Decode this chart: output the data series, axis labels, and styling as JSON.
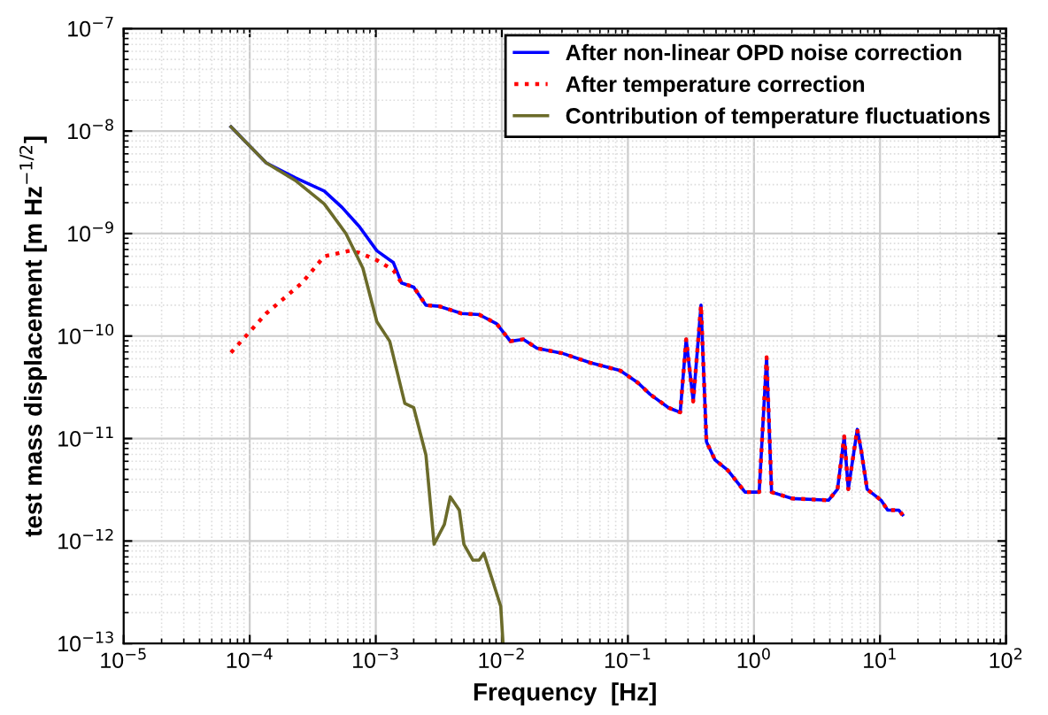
{
  "chart_data": {
    "type": "line",
    "log": "xy",
    "xlabel": "Frequency  [Hz]",
    "ylabel": "test mass displacement [m Hz$^{−1/2}$]",
    "xlim": [
      1e-05,
      100
    ],
    "ylim": [
      1e-13,
      1e-07
    ],
    "xticks": [
      {
        "value": 1e-05,
        "label": "10$^{−5}$"
      },
      {
        "value": 0.0001,
        "label": "10$^{−4}$"
      },
      {
        "value": 0.001,
        "label": "10$^{−3}$"
      },
      {
        "value": 0.01,
        "label": "10$^{−2}$"
      },
      {
        "value": 0.1,
        "label": "10$^{−1}$"
      },
      {
        "value": 1,
        "label": "10$^{0}$"
      },
      {
        "value": 10,
        "label": "10$^{1}$"
      },
      {
        "value": 100,
        "label": "10$^{2}$"
      }
    ],
    "yticks": [
      {
        "value": 1e-13,
        "label": "10$^{−13}$"
      },
      {
        "value": 1e-12,
        "label": "10$^{−12}$"
      },
      {
        "value": 1e-11,
        "label": "10$^{−11}$"
      },
      {
        "value": 1e-10,
        "label": "10$^{−10}$"
      },
      {
        "value": 1e-09,
        "label": "10$^{−9}$"
      },
      {
        "value": 1e-08,
        "label": "10$^{−8}$"
      },
      {
        "value": 1e-07,
        "label": "10$^{−7}$"
      }
    ],
    "grid": true,
    "legend": "top right",
    "marker": "none",
    "series": [
      {
        "name": "After non-linear OPD noise correction",
        "color": "#0000ff",
        "line_style": "solid",
        "x": [
          7.1e-05,
          0.000135,
          0.00023,
          0.00039,
          0.00054,
          0.00074,
          0.00102,
          0.00138,
          0.0016,
          0.002,
          0.0025,
          0.0032,
          0.0048,
          0.0066,
          0.0091,
          0.0117,
          0.0148,
          0.019,
          0.03,
          0.05,
          0.087,
          0.12,
          0.15,
          0.21,
          0.26,
          0.29,
          0.33,
          0.38,
          0.42,
          0.49,
          0.62,
          0.85,
          1.1,
          1.26,
          1.38,
          2.0,
          3.9,
          4.6,
          5.2,
          5.6,
          6.6,
          7.1,
          7.9,
          10.2,
          11.5,
          14.1,
          15.1
        ],
        "values": [
          1.1e-08,
          4.9e-09,
          3.5e-09,
          2.6e-09,
          1.8e-09,
          1.17e-09,
          6.8e-10,
          5.2e-10,
          3.3e-10,
          3e-10,
          2e-10,
          1.95e-10,
          1.66e-10,
          1.62e-10,
          1.32e-10,
          8.9e-11,
          9.3e-11,
          7.6e-11,
          6.8e-11,
          5.5e-11,
          4.6e-11,
          3.5e-11,
          2.7e-11,
          2e-11,
          1.8e-11,
          9.3e-11,
          2.3e-11,
          2e-10,
          9.3e-12,
          6.2e-12,
          4.9e-12,
          3e-12,
          3e-12,
          6.2e-11,
          3e-12,
          2.6e-12,
          2.5e-12,
          3.2e-12,
          1.05e-11,
          3.2e-12,
          1.23e-11,
          7.6e-12,
          3.2e-12,
          2.5e-12,
          2e-12,
          2e-12,
          1.8e-12
        ]
      },
      {
        "name": "After temperature correction",
        "color": "#ff0000",
        "line_style": "dotted",
        "x": [
          7.1e-05,
          0.000135,
          0.00026,
          0.00039,
          0.00062,
          0.00074,
          0.00102,
          0.00138,
          0.0016,
          0.002,
          0.0025,
          0.0032,
          0.0048,
          0.0066,
          0.0091,
          0.0117,
          0.0148,
          0.019,
          0.03,
          0.05,
          0.087,
          0.12,
          0.15,
          0.21,
          0.26,
          0.29,
          0.33,
          0.38,
          0.42,
          0.49,
          0.62,
          0.85,
          1.1,
          1.26,
          1.38,
          2.0,
          3.9,
          4.6,
          5.2,
          5.6,
          6.6,
          7.1,
          7.9,
          10.2,
          11.5,
          14.1,
          15.1
        ],
        "values": [
          6.9e-11,
          1.66e-10,
          3.3e-10,
          6e-10,
          6.8e-10,
          6.5e-10,
          5.5e-10,
          4.4e-10,
          3.3e-10,
          3e-10,
          2e-10,
          1.95e-10,
          1.66e-10,
          1.62e-10,
          1.32e-10,
          8.9e-11,
          9.3e-11,
          7.6e-11,
          6.8e-11,
          5.5e-11,
          4.6e-11,
          3.5e-11,
          2.7e-11,
          2e-11,
          1.8e-11,
          9.3e-11,
          2.3e-11,
          2e-10,
          9.3e-12,
          6.2e-12,
          4.9e-12,
          3e-12,
          3e-12,
          6.2e-11,
          3e-12,
          2.6e-12,
          2.5e-12,
          3.2e-12,
          1.05e-11,
          3.2e-12,
          1.23e-11,
          7.6e-12,
          3.2e-12,
          2.5e-12,
          2e-12,
          2e-12,
          1.8e-12
        ]
      },
      {
        "name": "Contribution of temperature fluctuations",
        "color": "#6b6b2a",
        "line_style": "solid",
        "x": [
          7.1e-05,
          0.000135,
          0.00023,
          0.00039,
          0.00058,
          0.00079,
          0.00102,
          0.00129,
          0.0017,
          0.002,
          0.0025,
          0.0029,
          0.0035,
          0.0039,
          0.0046,
          0.005,
          0.0059,
          0.0066,
          0.0072,
          0.0083,
          0.0098,
          0.0102
        ],
        "values": [
          1.1e-08,
          4.9e-09,
          3.3e-09,
          1.95e-09,
          1e-09,
          4.6e-10,
          1.38e-10,
          8.9e-11,
          2.2e-11,
          2e-11,
          6.9e-12,
          9.3e-13,
          1.45e-12,
          2.7e-12,
          2e-12,
          9.3e-13,
          6.5e-13,
          6.5e-13,
          7.6e-13,
          4.4e-13,
          2.3e-13,
          1.05e-13
        ]
      }
    ]
  }
}
